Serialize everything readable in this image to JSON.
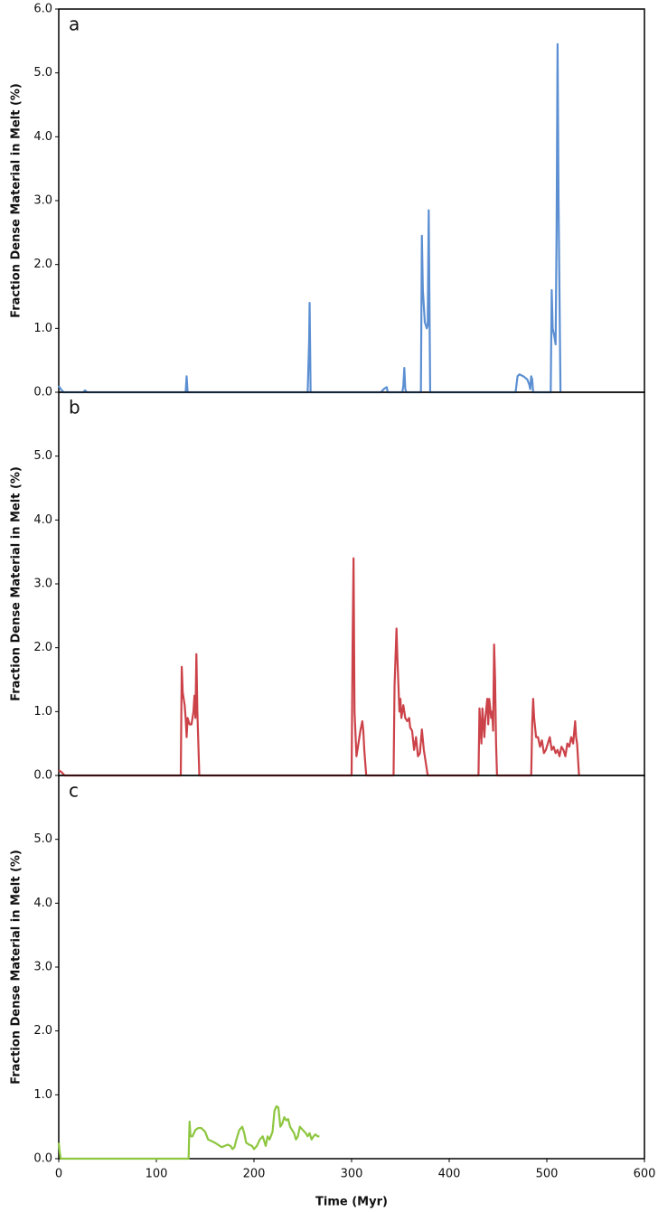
{
  "chart_data": [
    {
      "type": "line",
      "panel_label": "a",
      "ylabel": "Fraction Dense Material in Melt (%)",
      "xlim": [
        0,
        600
      ],
      "ylim": [
        0,
        6
      ],
      "yticks": [
        {
          "value": 0,
          "label": "0.0"
        },
        {
          "value": 1,
          "label": "1.0"
        },
        {
          "value": 2,
          "label": "2.0"
        },
        {
          "value": 3,
          "label": "3.0"
        },
        {
          "value": 4,
          "label": "4.0"
        },
        {
          "value": 5,
          "label": "5.0"
        },
        {
          "value": 6,
          "label": "6.0"
        }
      ],
      "series": [
        {
          "color": "#5b8fd2",
          "x": [
            0,
            2,
            5,
            25,
            27,
            29,
            130,
            131,
            132,
            255,
            256.5,
            257,
            258,
            330,
            333,
            336,
            337,
            352,
            353,
            354,
            355,
            356,
            371,
            372,
            373,
            375,
            377,
            378,
            379,
            380.5,
            468,
            470,
            472,
            476,
            480,
            482,
            483,
            484,
            485,
            486,
            504,
            505,
            506,
            508,
            509,
            510,
            511,
            512,
            514
          ],
          "values": [
            0.1,
            0.05,
            0,
            0,
            0.03,
            0,
            0,
            0.25,
            0,
            0,
            0.8,
            1.4,
            0,
            0,
            0.05,
            0.08,
            0,
            0,
            0.1,
            0.38,
            0.05,
            0,
            0,
            2.45,
            1.6,
            1.1,
            1.0,
            1.05,
            2.85,
            0,
            0,
            0.25,
            0.28,
            0.25,
            0.2,
            0.12,
            0.05,
            0.25,
            0.2,
            0,
            0,
            1.6,
            1.0,
            0.85,
            0.75,
            2.5,
            5.45,
            3.0,
            0
          ]
        }
      ]
    },
    {
      "type": "line",
      "panel_label": "b",
      "ylabel": "Fraction Dense Material in Melt (%)",
      "xlim": [
        0,
        600
      ],
      "ylim": [
        0,
        6
      ],
      "yticks": [
        {
          "value": 0,
          "label": "0.0"
        },
        {
          "value": 1,
          "label": "1.0"
        },
        {
          "value": 2,
          "label": "2.0"
        },
        {
          "value": 3,
          "label": "3.0"
        },
        {
          "value": 4,
          "label": "4.0"
        },
        {
          "value": 5,
          "label": "5.0"
        }
      ],
      "series": [
        {
          "color": "#cc4249",
          "x": [
            0,
            3,
            6,
            8,
            125,
            126,
            127,
            129,
            130,
            131,
            132,
            134,
            136,
            138,
            139,
            140,
            141,
            142,
            144,
            300,
            301,
            302,
            303,
            305,
            307,
            309,
            311,
            312,
            313,
            315,
            343,
            344,
            346,
            347,
            348,
            349,
            350,
            351,
            353,
            355,
            357,
            359,
            360,
            362,
            364,
            366,
            368,
            370,
            372,
            374,
            376,
            378,
            430,
            431,
            433,
            434,
            436,
            437,
            439,
            440,
            441,
            443,
            444,
            445,
            446,
            447,
            448,
            449,
            484,
            485,
            486,
            487,
            489,
            491,
            493,
            495,
            497,
            499,
            501,
            503,
            505,
            507,
            509,
            511,
            513,
            515,
            517,
            519,
            521,
            523,
            525,
            527,
            529,
            530,
            531,
            533
          ],
          "values": [
            0.08,
            0.05,
            0,
            0,
            0,
            1.7,
            1.3,
            1.1,
            0.9,
            0.6,
            0.9,
            0.8,
            0.8,
            1.0,
            1.25,
            0.9,
            1.9,
            1.0,
            0,
            0,
            2.0,
            3.4,
            1.0,
            0.3,
            0.5,
            0.7,
            0.85,
            0.7,
            0.4,
            0,
            0,
            1.4,
            2.3,
            1.8,
            1.4,
            1.0,
            1.2,
            0.9,
            1.1,
            0.9,
            0.85,
            0.9,
            0.75,
            0.7,
            0.4,
            0.6,
            0.3,
            0.35,
            0.72,
            0.4,
            0.2,
            0,
            0,
            1.05,
            0.5,
            1.05,
            0.6,
            0.9,
            1.2,
            0.8,
            1.2,
            0.9,
            1.0,
            0.7,
            2.05,
            1.5,
            0.5,
            0,
            0,
            0.8,
            1.2,
            0.9,
            0.6,
            0.6,
            0.45,
            0.55,
            0.35,
            0.4,
            0.5,
            0.6,
            0.4,
            0.45,
            0.35,
            0.4,
            0.3,
            0.45,
            0.4,
            0.3,
            0.5,
            0.45,
            0.6,
            0.5,
            0.85,
            0.6,
            0.5,
            0
          ]
        }
      ]
    },
    {
      "type": "line",
      "panel_label": "c",
      "ylabel": "Fraction Dense Material in Melt (%)",
      "xlabel": "Time (Myr)",
      "xlim": [
        0,
        600
      ],
      "ylim": [
        0,
        6
      ],
      "xticks": [
        0,
        100,
        200,
        300,
        400,
        500,
        600
      ],
      "yticks": [
        {
          "value": 0,
          "label": "0.0"
        },
        {
          "value": 1,
          "label": "1.0"
        },
        {
          "value": 2,
          "label": "2.0"
        },
        {
          "value": 3,
          "label": "3.0"
        },
        {
          "value": 4,
          "label": "4.0"
        },
        {
          "value": 5,
          "label": "5.0"
        }
      ],
      "series": [
        {
          "color": "#8dc63f",
          "x": [
            0,
            1,
            2,
            133,
            134,
            135,
            137,
            140,
            143,
            146,
            150,
            153,
            156,
            160,
            163,
            165,
            167,
            170,
            173,
            176,
            178,
            180,
            182,
            185,
            188,
            190,
            192,
            195,
            198,
            200,
            203,
            206,
            209,
            212,
            214,
            216,
            219,
            221,
            223,
            225,
            227,
            229,
            231,
            233,
            235,
            237,
            239,
            241,
            243,
            245,
            247,
            250,
            253,
            255,
            257,
            259,
            261,
            263,
            265,
            267
          ],
          "values": [
            0.25,
            0.1,
            0,
            0,
            0.58,
            0.35,
            0.35,
            0.45,
            0.48,
            0.48,
            0.42,
            0.3,
            0.28,
            0.25,
            0.22,
            0.2,
            0.18,
            0.2,
            0.22,
            0.2,
            0.15,
            0.18,
            0.3,
            0.45,
            0.5,
            0.4,
            0.25,
            0.22,
            0.2,
            0.15,
            0.2,
            0.3,
            0.35,
            0.2,
            0.35,
            0.3,
            0.42,
            0.75,
            0.82,
            0.8,
            0.5,
            0.55,
            0.65,
            0.6,
            0.62,
            0.5,
            0.45,
            0.4,
            0.3,
            0.35,
            0.5,
            0.45,
            0.4,
            0.35,
            0.4,
            0.3,
            0.35,
            0.38,
            0.35,
            0.35
          ]
        }
      ]
    }
  ]
}
